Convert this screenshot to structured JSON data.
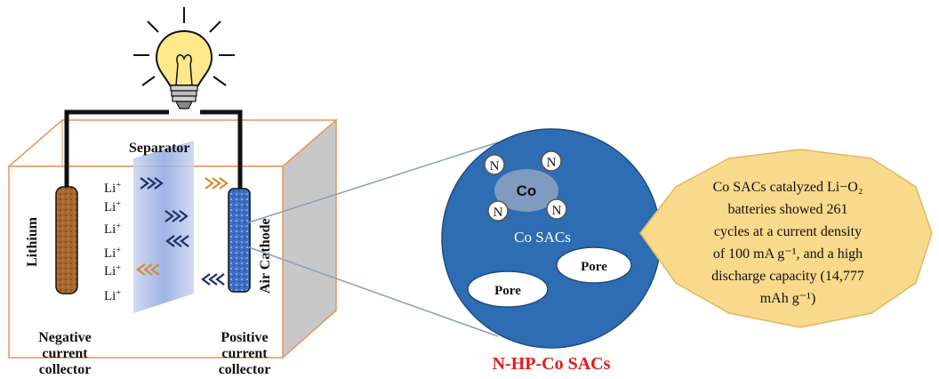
{
  "battery": {
    "separator_label": "Separator",
    "anode_label": "Lithium",
    "cathode_label": "Air Cathode",
    "ion_label": "Li",
    "ion_charge": "+",
    "negative_collector": [
      "Negative",
      "current",
      "collector"
    ],
    "positive_collector": [
      "Positive",
      "current",
      "collector"
    ]
  },
  "zoom_circle": {
    "metal_label": "Co",
    "nitrogen_label": "N",
    "sac_label": "Co SACs",
    "pore_label": "Pore",
    "caption": "N-HP-Co SACs"
  },
  "callout": {
    "lines": [
      "Co SACs catalyzed Li−O₂",
      "batteries showed 261",
      "cycles at a current density",
      "of 100 mA g⁻¹, and a high",
      "discharge capacity (14,777",
      "mAh g⁻¹)"
    ]
  },
  "colors": {
    "box_outline": "#e8955a",
    "circle_fill": "#2e6db3",
    "cobalt_fill": "#7f9bbf",
    "callout_fill": "#f9d98b",
    "caption": "#e01b1b",
    "lithium_fill": "#a8672e",
    "cathode_fill": "#3f6fc4"
  }
}
